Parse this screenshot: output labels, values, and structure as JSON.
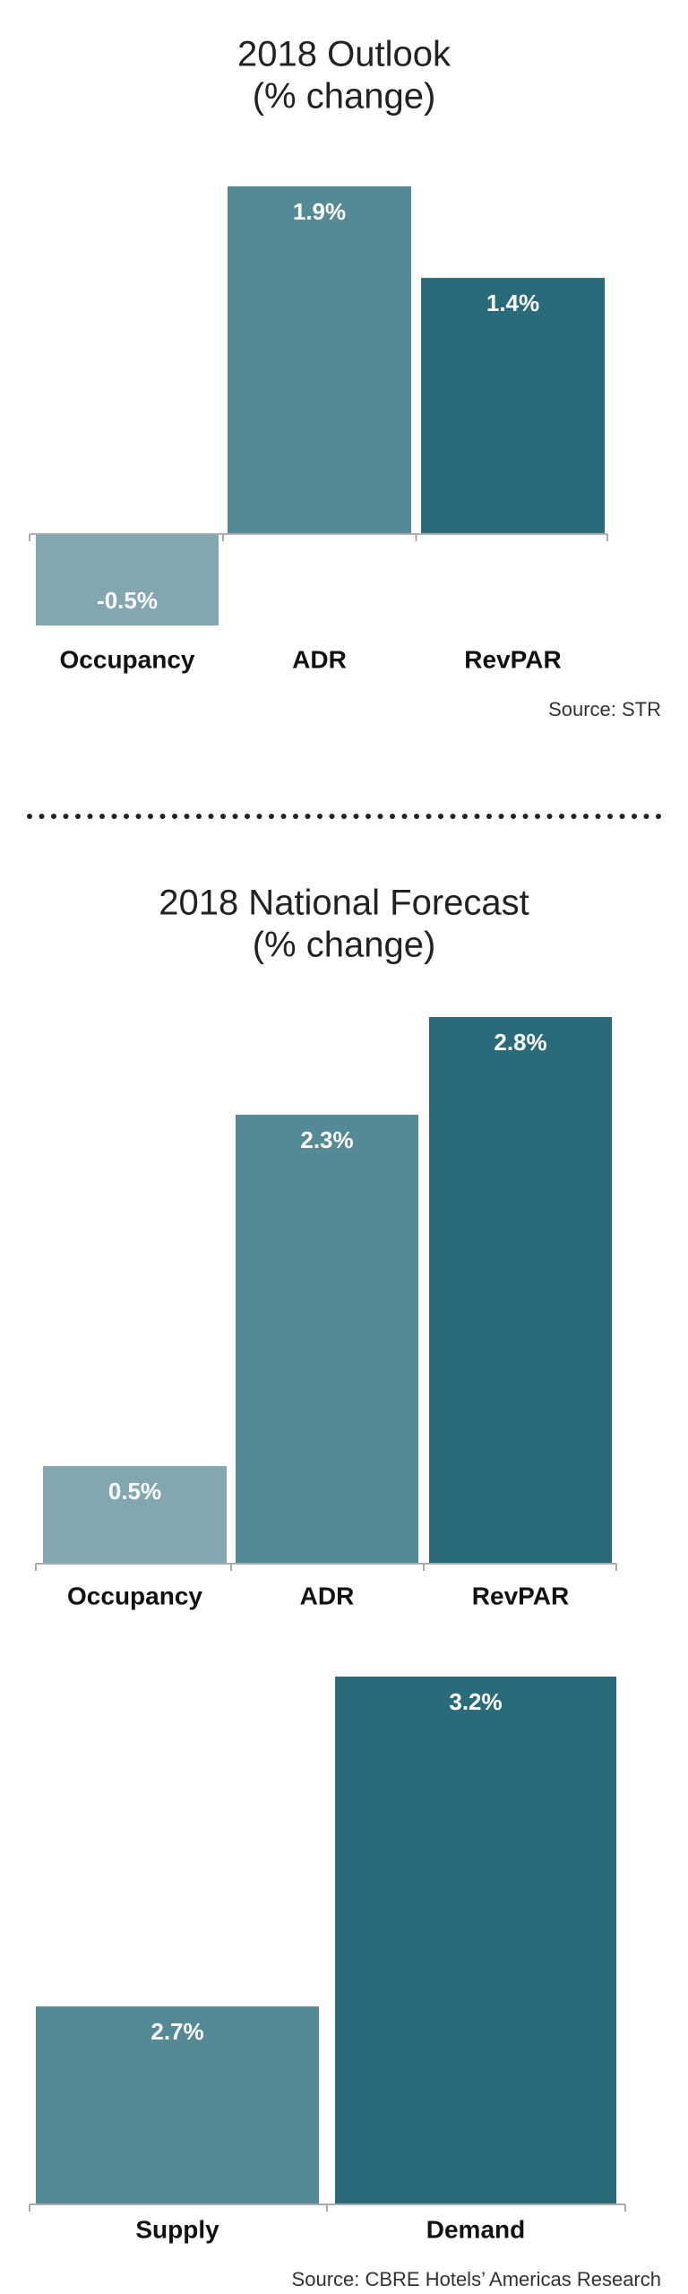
{
  "chart_data": [
    {
      "type": "bar",
      "title": "2018 Outlook",
      "subtitle": "(% change)",
      "categories": [
        "Occupancy",
        "ADR",
        "RevPAR"
      ],
      "values": [
        -0.5,
        1.9,
        1.4
      ],
      "value_labels": [
        "-0.5%",
        "1.9%",
        "1.4%"
      ],
      "colors": [
        "#82a7b0",
        "#548a96",
        "#2a6b7b"
      ],
      "ylim": [
        -0.5,
        1.9
      ],
      "source": "Source: STR"
    },
    {
      "type": "bar",
      "title": "2018 National Forecast",
      "subtitle": "(% change)",
      "categories": [
        "Occupancy",
        "ADR",
        "RevPAR"
      ],
      "values": [
        0.5,
        2.3,
        2.8
      ],
      "value_labels": [
        "0.5%",
        "2.3%",
        "2.8%"
      ],
      "colors": [
        "#82a7b0",
        "#548a96",
        "#2a6b7b"
      ],
      "ylim": [
        0,
        2.8
      ]
    },
    {
      "type": "bar",
      "categories": [
        "Supply",
        "Demand"
      ],
      "values": [
        2.7,
        3.2
      ],
      "value_labels": [
        "2.7%",
        "3.2%"
      ],
      "colors": [
        "#548a96",
        "#2a6b7b"
      ],
      "ylim": [
        2.4,
        3.2
      ],
      "source": "Source: CBRE Hotels’ Americas Research"
    }
  ]
}
